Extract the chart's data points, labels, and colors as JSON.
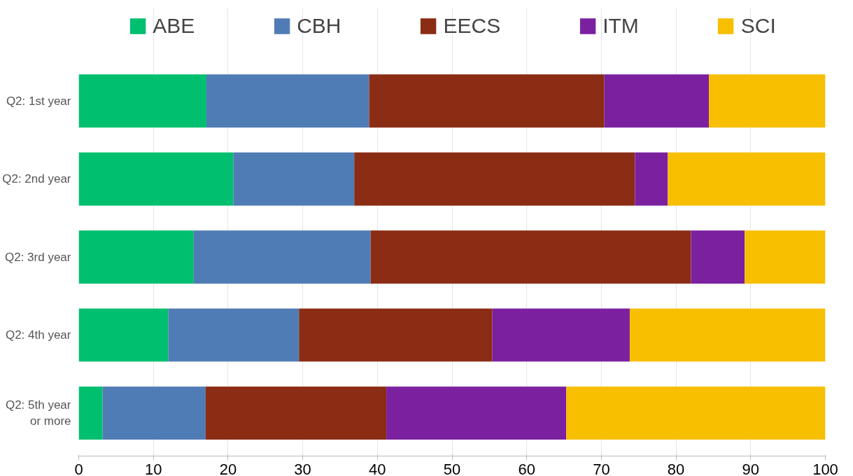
{
  "chart_data": {
    "type": "bar",
    "orientation": "horizontal",
    "stacked": true,
    "categories": [
      "Q2: 1st year",
      "Q2: 2nd year",
      "Q2: 3rd year",
      "Q2: 4th year",
      "Q2: 5th year\nor more"
    ],
    "series": [
      {
        "name": "ABE",
        "color": "#00bf6f",
        "values": [
          17.1,
          20.7,
          15.4,
          12.0,
          3.2
        ]
      },
      {
        "name": "CBH",
        "color": "#507cb6",
        "values": [
          21.8,
          16.2,
          23.7,
          17.5,
          13.8
        ]
      },
      {
        "name": "EECS",
        "color": "#8b2c15",
        "values": [
          31.5,
          37.6,
          42.9,
          25.9,
          24.2
        ]
      },
      {
        "name": "ITM",
        "color": "#7b21a0",
        "values": [
          14.0,
          4.4,
          7.2,
          18.4,
          24.1
        ]
      },
      {
        "name": "SCI",
        "color": "#f8be00",
        "values": [
          15.6,
          21.1,
          10.8,
          26.2,
          34.7
        ]
      }
    ],
    "xlim": [
      0,
      100
    ],
    "xticks": [
      0,
      10,
      20,
      30,
      40,
      50,
      60,
      70,
      80,
      90,
      100
    ],
    "grid": "x",
    "legend": "top"
  }
}
